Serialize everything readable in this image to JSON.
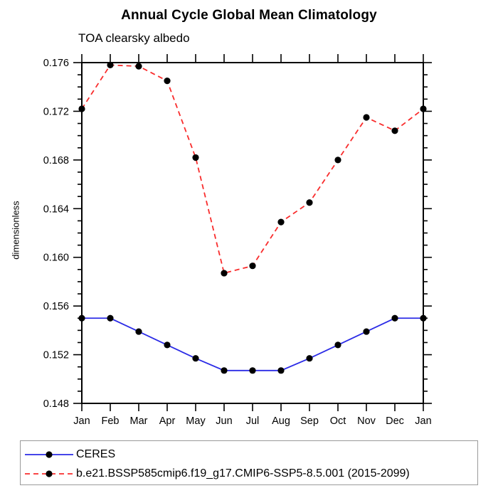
{
  "title": "Annual Cycle Global Mean Climatology",
  "subtitle": "TOA clearsky albedo",
  "y_axis_label": "dimensionless",
  "chart_data": {
    "type": "line",
    "categories": [
      "Jan",
      "Feb",
      "Mar",
      "Apr",
      "May",
      "Jun",
      "Jul",
      "Aug",
      "Sep",
      "Oct",
      "Nov",
      "Dec",
      "Jan"
    ],
    "series": [
      {
        "name": "CERES",
        "color": "#2b2be6",
        "line_style": "solid",
        "marker": "filled-circle",
        "marker_color": "#000000",
        "values": [
          0.155,
          0.155,
          0.1539,
          0.1528,
          0.1517,
          0.1507,
          0.1507,
          0.1507,
          0.1517,
          0.1528,
          0.1539,
          0.155,
          0.155
        ]
      },
      {
        "name": "b.e21.BSSP585cmip6.f19_g17.CMIP6-SSP5-8.5.001 (2015-2099)",
        "color": "#f92c2c",
        "line_style": "dashed",
        "marker": "filled-circle",
        "marker_color": "#000000",
        "values": [
          0.1722,
          0.1758,
          0.1757,
          0.1745,
          0.1682,
          0.1587,
          0.1593,
          0.1629,
          0.1645,
          0.168,
          0.1715,
          0.1704,
          0.1722
        ]
      }
    ],
    "xlabel": "",
    "ylabel": "dimensionless",
    "ylim": [
      0.148,
      0.176
    ],
    "ytick_major_step": 0.004,
    "ytick_minor_step": 0.001,
    "ytick_labels": [
      "0.148",
      "0.152",
      "0.156",
      "0.160",
      "0.164",
      "0.168",
      "0.172",
      "0.176"
    ],
    "grid": false,
    "legend_position": "bottom-box",
    "axis_color": "#000000"
  }
}
